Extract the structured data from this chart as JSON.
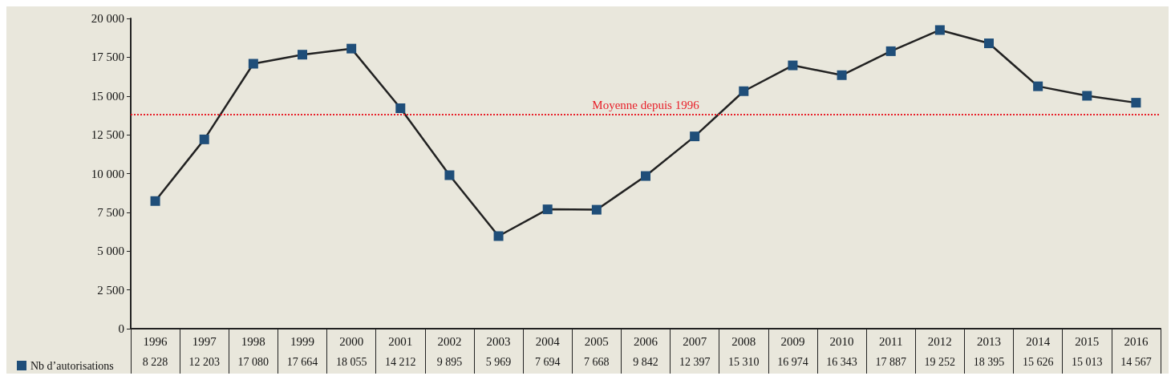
{
  "chart_data": {
    "type": "line",
    "categories": [
      "1996",
      "1997",
      "1998",
      "1999",
      "2000",
      "2001",
      "2002",
      "2003",
      "2004",
      "2005",
      "2006",
      "2007",
      "2008",
      "2009",
      "2010",
      "2011",
      "2012",
      "2013",
      "2014",
      "2015",
      "2016"
    ],
    "series": [
      {
        "name": "Nb d’autorisations",
        "color": "#1f4e79",
        "values": [
          8228,
          12203,
          17080,
          17664,
          18055,
          14212,
          9895,
          5969,
          7694,
          7668,
          9842,
          12397,
          15310,
          16974,
          16343,
          17887,
          19252,
          18395,
          15626,
          15013,
          14567
        ],
        "value_labels": [
          "8 228",
          "12 203",
          "17 080",
          "17 664",
          "18 055",
          "14 212",
          "9 895",
          "5 969",
          "7 694",
          "7 668",
          "9 842",
          "12 397",
          "15 310",
          "16 974",
          "16 343",
          "17 887",
          "19 252",
          "18 395",
          "15 626",
          "15 013",
          "14 567"
        ]
      }
    ],
    "ylim": [
      0,
      20000
    ],
    "yticks": [
      {
        "value": 0,
        "label": "0"
      },
      {
        "value": 2500,
        "label": "2 500"
      },
      {
        "value": 5000,
        "label": "5 000"
      },
      {
        "value": 7500,
        "label": "7 500"
      },
      {
        "value": 10000,
        "label": "10 000"
      },
      {
        "value": 12500,
        "label": "12 500"
      },
      {
        "value": 15000,
        "label": "15 000"
      },
      {
        "value": 17500,
        "label": "17 500"
      },
      {
        "value": 20000,
        "label": "20 000"
      }
    ],
    "ref_lines": [
      {
        "axis": "y",
        "value": 13823,
        "label": "Moyenne depuis 1996",
        "color": "#e8202a",
        "line_style": "dotted"
      }
    ],
    "marker": "square",
    "line_style": "solid",
    "legend": "bottom left",
    "grid": false
  }
}
